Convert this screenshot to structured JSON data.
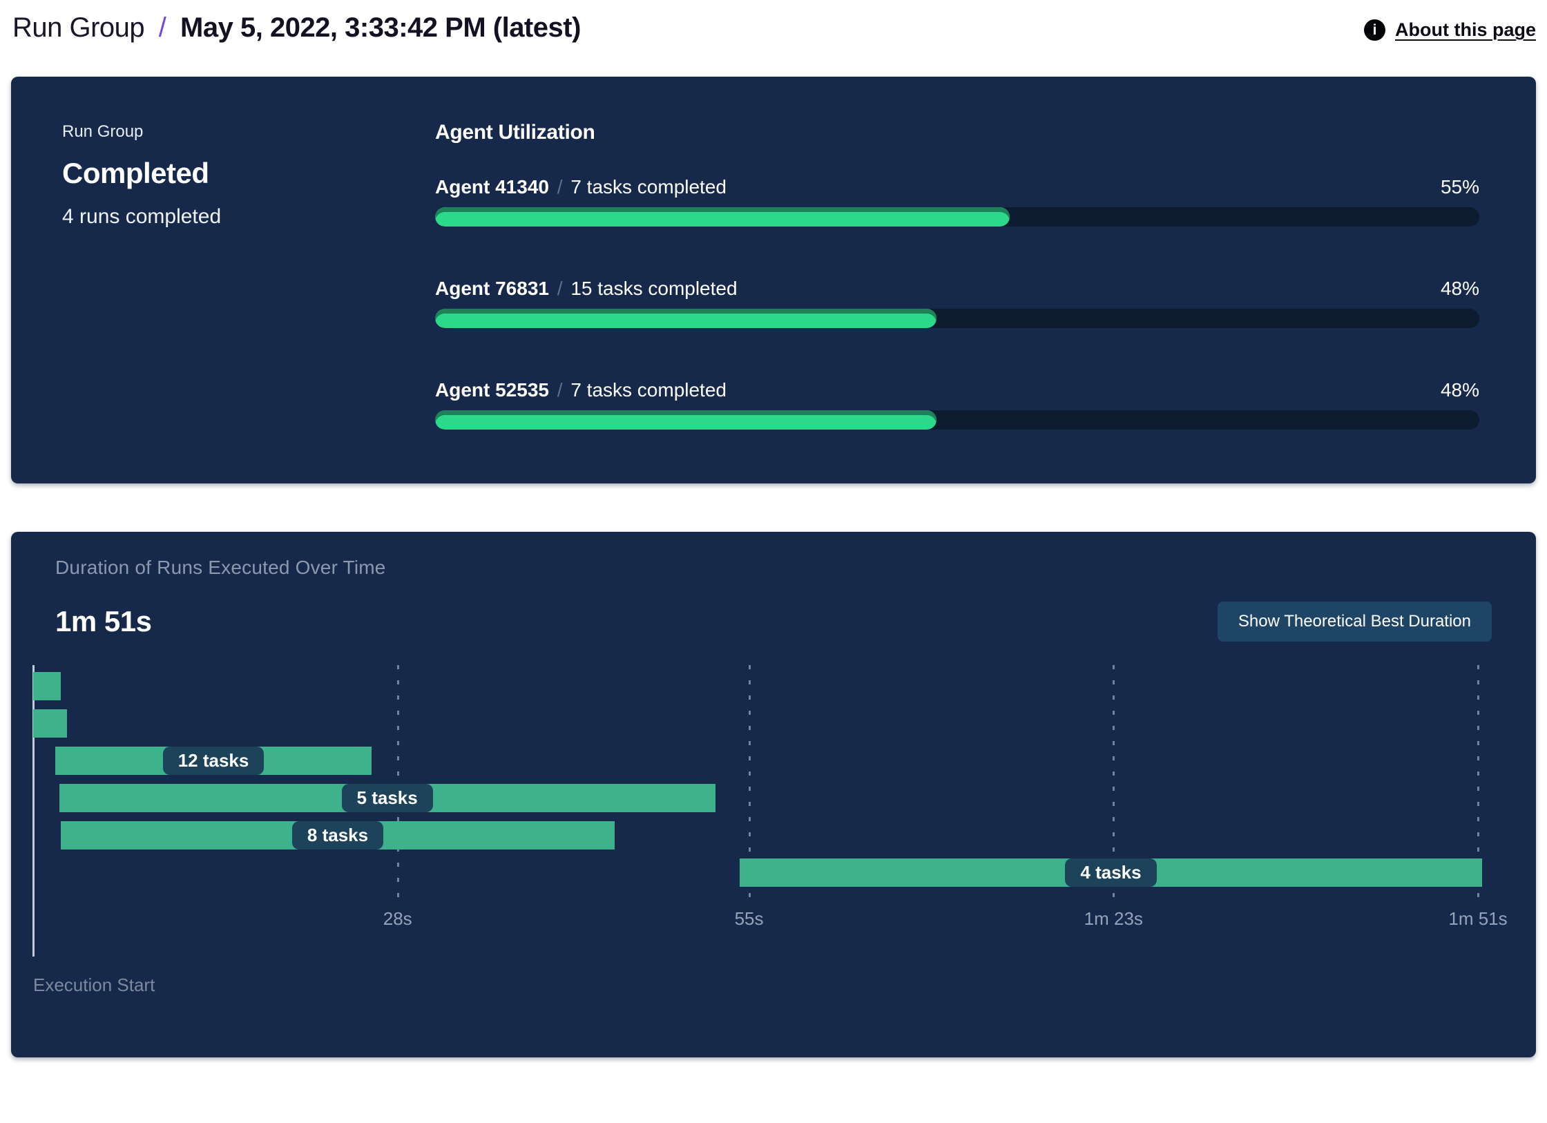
{
  "header": {
    "breadcrumb_root": "Run Group",
    "separator": "/",
    "title": "May 5, 2022, 3:33:42 PM (latest)",
    "about_link": "About this page",
    "info_icon": "info-icon"
  },
  "summary_panel": {
    "group_label": "Run Group",
    "status": "Completed",
    "runs_summary": "4 runs completed",
    "utilization": {
      "heading": "Agent Utilization",
      "agents": [
        {
          "name": "Agent 41340",
          "separator": "/",
          "tasks": "7 tasks completed",
          "percent": 55,
          "percent_label": "55%"
        },
        {
          "name": "Agent 76831",
          "separator": "/",
          "tasks": "15 tasks completed",
          "percent": 48,
          "percent_label": "48%"
        },
        {
          "name": "Agent 52535",
          "separator": "/",
          "tasks": "7 tasks completed",
          "percent": 48,
          "percent_label": "48%"
        }
      ]
    }
  },
  "duration_panel": {
    "title": "Duration of Runs Executed Over Time",
    "total_duration": "1m 51s",
    "button_label": "Show Theoretical Best Duration",
    "execution_start_label": "Execution Start"
  },
  "chart_data": {
    "type": "gantt",
    "title": "Duration of Runs Executed Over Time",
    "total_duration_label": "1m 51s",
    "xlabel": "Execution Start",
    "max_seconds": 111,
    "x_ticks": [
      {
        "label": "28s",
        "seconds": 28
      },
      {
        "label": "55s",
        "seconds": 55
      },
      {
        "label": "1m 23s",
        "seconds": 83
      },
      {
        "label": "1m 51s",
        "seconds": 111
      }
    ],
    "bars": [
      {
        "run": 1,
        "start_seconds": 0,
        "end_seconds": 2.1,
        "label": ""
      },
      {
        "run": 2,
        "start_seconds": 0,
        "end_seconds": 2.6,
        "label": ""
      },
      {
        "run": 3,
        "start_seconds": 1.7,
        "end_seconds": 26.0,
        "label": "12 tasks"
      },
      {
        "run": 4,
        "start_seconds": 2.0,
        "end_seconds": 52.4,
        "label": "5 tasks"
      },
      {
        "run": 5,
        "start_seconds": 2.1,
        "end_seconds": 44.7,
        "label": "8 tasks"
      },
      {
        "run": 6,
        "start_seconds": 54.3,
        "end_seconds": 111.3,
        "label": "4 tasks"
      }
    ],
    "grid": "vertical-dashed",
    "colors": {
      "bar_green": "#3eb28b",
      "pill_navy": "#1c4359",
      "axis_gray": "#95a3ba"
    }
  },
  "colors": {
    "panel_navy": "#16294a",
    "progress_green": "#2bd98a",
    "progress_green_shade": "#1f8159",
    "progress_track": "#0d1b30",
    "breadcrumb_purple": "#7048e8",
    "button_navy": "#1e4466"
  }
}
